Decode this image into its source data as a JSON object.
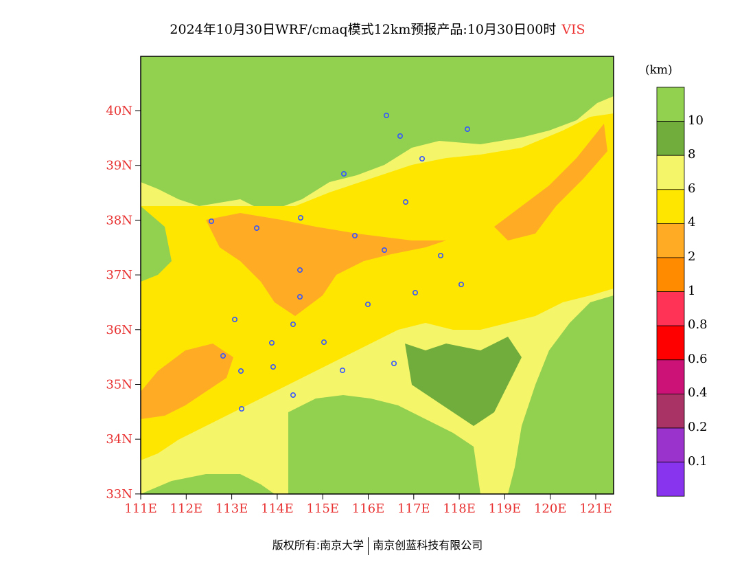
{
  "title": "2024年10月30日WRF/cmaq模式12km预报产品:10月30日00时",
  "variable": "VIS",
  "unit": "(km)",
  "colors": {
    "c10": "#92d050",
    "c8": "#70ad3c",
    "c6": "#f5f56a",
    "c4": "#ffe600",
    "c2": "#ffab24",
    "c1": "#ff8c00",
    "c08": "#ff3355",
    "c06": "#ff0000",
    "c04": "#cc1177",
    "c02": "#aa3366",
    "c01": "#9933cc",
    "c0": "#8833ee",
    "axis_label": "#e83030",
    "station": "#3355ff"
  },
  "colorbar": {
    "labels": [
      "10",
      "8",
      "6",
      "4",
      "2",
      "1",
      "0.8",
      "0.6",
      "0.4",
      "0.2",
      "0.1"
    ]
  },
  "lat_labels": [
    "40N",
    "39N",
    "38N",
    "37N",
    "36N",
    "35N",
    "34N",
    "33N"
  ],
  "lon_labels": [
    "111E",
    "112E",
    "113E",
    "114E",
    "115E",
    "116E",
    "117E",
    "118E",
    "119E",
    "120E",
    "121E"
  ],
  "footer": {
    "left": "版权所有:南京大学",
    "right": "南京创蓝科技有限公司"
  }
}
